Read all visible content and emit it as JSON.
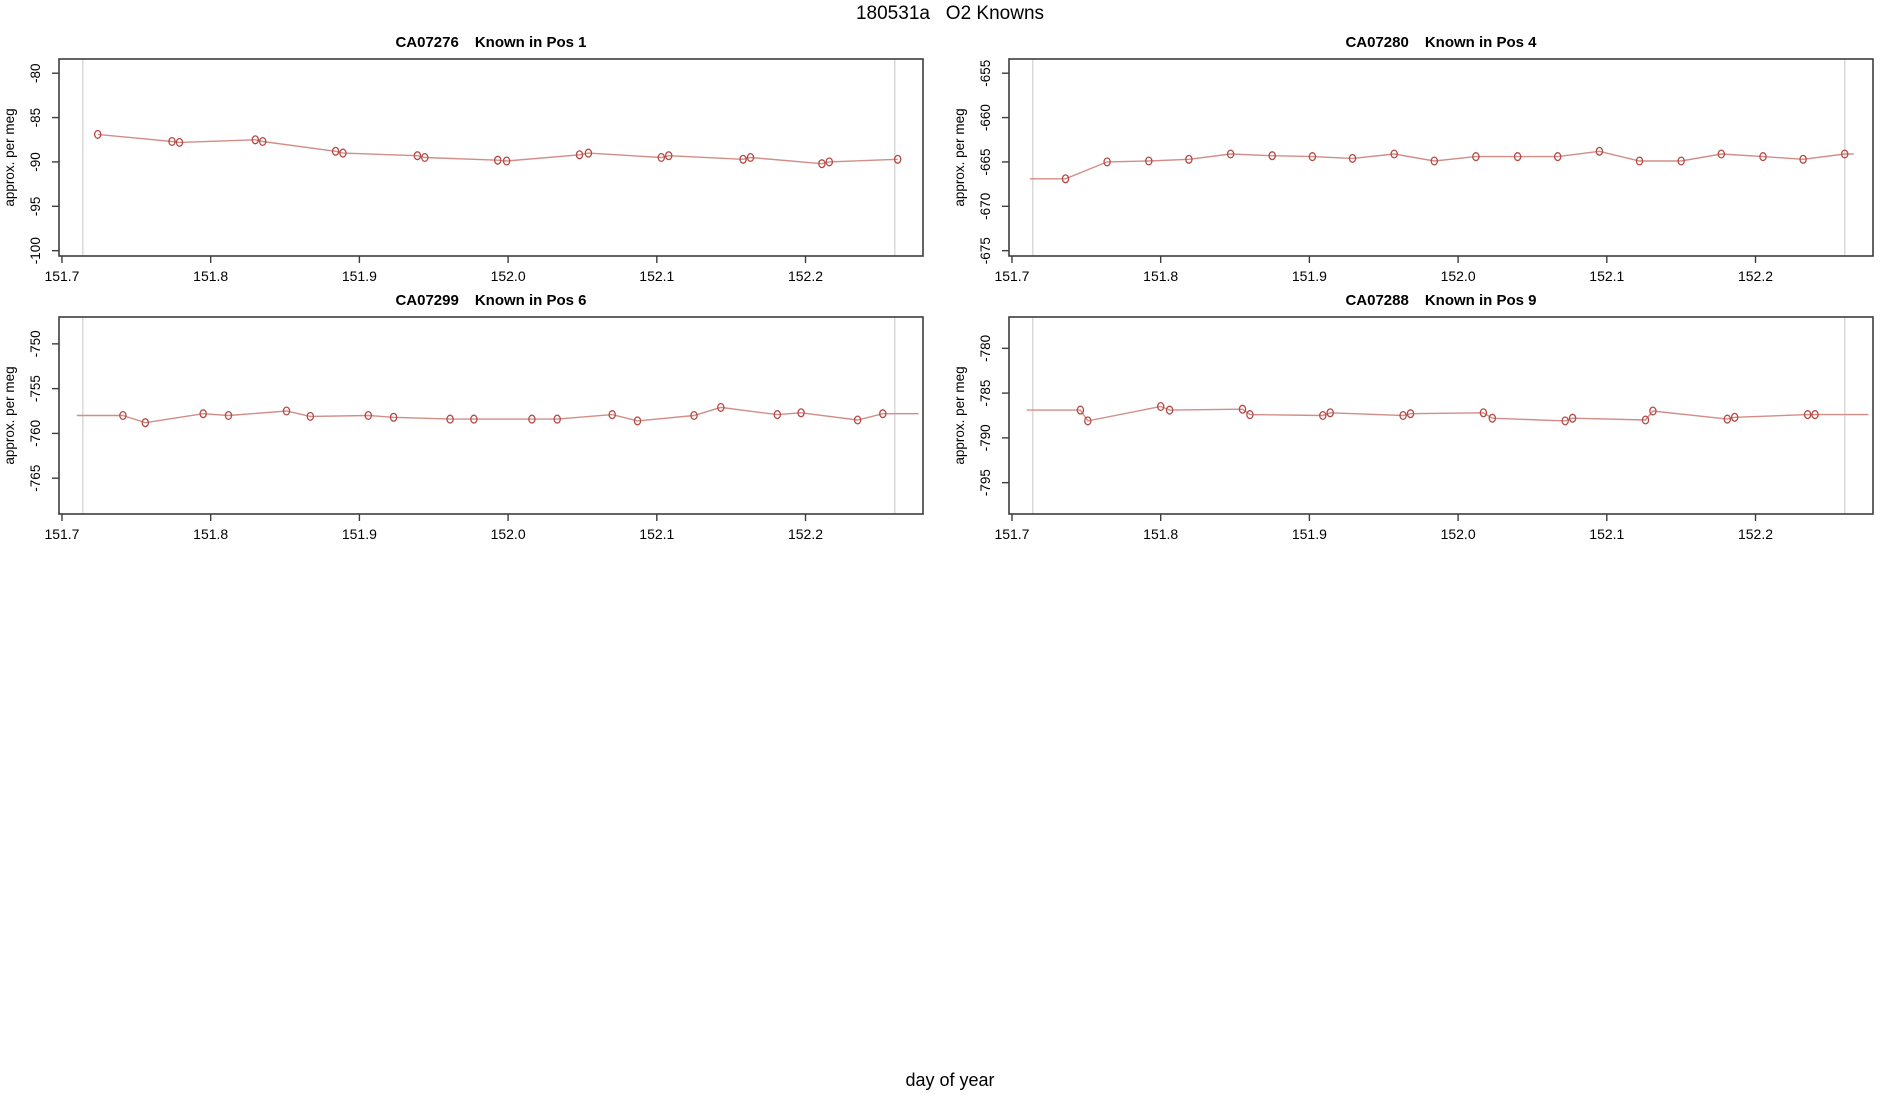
{
  "page": {
    "title": "180531a   O2 Knowns",
    "xlabel": "day of year"
  },
  "styles": {
    "line_color": "#d28d88",
    "point_color": "#b64843",
    "frame_color": "#3d3d3d",
    "guide_color": "#d8d8d8",
    "text_color": "#000000",
    "background": "#ffffff"
  },
  "chart_data": [
    {
      "type": "line",
      "station": "CA07276",
      "position_label": "Known in Pos 1",
      "ylabel": "approx. per meg",
      "xlim": [
        151.698,
        152.279
      ],
      "ylim": [
        -100.6,
        -78.4
      ],
      "xticks": [
        "151.7",
        "151.8",
        "151.9",
        "152.0",
        "152.1",
        "152.2"
      ],
      "yticks": [
        "-80",
        "-85",
        "-90",
        "-95",
        "-100"
      ],
      "guides": [
        151.714,
        152.26
      ],
      "lead_from": null,
      "trail_to": null,
      "x": [
        151.724,
        151.774,
        151.779,
        151.83,
        151.835,
        151.884,
        151.889,
        151.939,
        151.944,
        151.993,
        151.999,
        152.048,
        152.054,
        152.103,
        152.108,
        152.158,
        152.163,
        152.211,
        152.216,
        152.262
      ],
      "y": [
        -86.9,
        -87.7,
        -87.8,
        -87.5,
        -87.7,
        -88.8,
        -89.0,
        -89.3,
        -89.5,
        -89.8,
        -89.9,
        -89.2,
        -89.0,
        -89.5,
        -89.3,
        -89.7,
        -89.5,
        -90.2,
        -90.0,
        -89.7
      ]
    },
    {
      "type": "line",
      "station": "CA07280",
      "position_label": "Known in Pos 4",
      "ylabel": "approx. per meg",
      "xlim": [
        151.698,
        152.279
      ],
      "ylim": [
        -675.6,
        -653.4
      ],
      "xticks": [
        "151.7",
        "151.8",
        "151.9",
        "152.0",
        "152.1",
        "152.2"
      ],
      "yticks": [
        "-655",
        "-660",
        "-665",
        "-670",
        "-675"
      ],
      "guides": [
        151.714,
        152.26
      ],
      "lead_from": 151.712,
      "trail_to": 152.266,
      "x": [
        151.736,
        151.764,
        151.792,
        151.819,
        151.847,
        151.875,
        151.902,
        151.929,
        151.957,
        151.984,
        152.012,
        152.04,
        152.067,
        152.095,
        152.122,
        152.15,
        152.177,
        152.205,
        152.232,
        152.26
      ],
      "y": [
        -666.9,
        -665.0,
        -664.9,
        -664.7,
        -664.1,
        -664.3,
        -664.4,
        -664.6,
        -664.1,
        -664.9,
        -664.4,
        -664.4,
        -664.4,
        -663.8,
        -664.9,
        -664.9,
        -664.1,
        -664.4,
        -664.7,
        -664.1
      ]
    },
    {
      "type": "line",
      "station": "CA07299",
      "position_label": "Known in Pos 6",
      "ylabel": "approx. per meg",
      "xlim": [
        151.698,
        152.279
      ],
      "ylim": [
        -769.0,
        -747.0
      ],
      "xticks": [
        "151.7",
        "151.8",
        "151.9",
        "152.0",
        "152.1",
        "152.2"
      ],
      "yticks": [
        "-750",
        "-755",
        "-760",
        "-765"
      ],
      "guides": [
        151.714,
        152.26
      ],
      "lead_from": 151.71,
      "trail_to": 152.276,
      "x": [
        151.741,
        151.756,
        151.795,
        151.812,
        151.851,
        151.867,
        151.906,
        151.923,
        151.961,
        151.977,
        152.016,
        152.033,
        152.07,
        152.087,
        152.125,
        152.143,
        152.181,
        152.197,
        152.235,
        152.252
      ],
      "y": [
        -758.0,
        -758.8,
        -757.8,
        -758.0,
        -757.5,
        -758.1,
        -758.0,
        -758.2,
        -758.4,
        -758.4,
        -758.4,
        -758.4,
        -757.9,
        -758.6,
        -758.0,
        -757.1,
        -757.9,
        -757.7,
        -758.5,
        -757.8
      ]
    },
    {
      "type": "line",
      "station": "CA07288",
      "position_label": "Known in Pos 9",
      "ylabel": "approx. per meg",
      "xlim": [
        151.698,
        152.279
      ],
      "ylim": [
        -798.5,
        -776.5
      ],
      "xticks": [
        "151.7",
        "151.8",
        "151.9",
        "152.0",
        "152.1",
        "152.2"
      ],
      "yticks": [
        "-780",
        "-785",
        "-790",
        "-795"
      ],
      "guides": [
        151.714,
        152.26
      ],
      "lead_from": 151.71,
      "trail_to": 152.276,
      "x": [
        151.746,
        151.751,
        151.8,
        151.806,
        151.855,
        151.86,
        151.909,
        151.914,
        151.963,
        151.968,
        152.017,
        152.023,
        152.072,
        152.077,
        152.126,
        152.131,
        152.181,
        152.186,
        152.235,
        152.24
      ],
      "y": [
        -786.9,
        -788.1,
        -786.5,
        -786.9,
        -786.8,
        -787.4,
        -787.5,
        -787.2,
        -787.5,
        -787.3,
        -787.2,
        -787.8,
        -788.1,
        -787.8,
        -788.0,
        -787.0,
        -787.9,
        -787.7,
        -787.4,
        -787.4
      ]
    }
  ]
}
